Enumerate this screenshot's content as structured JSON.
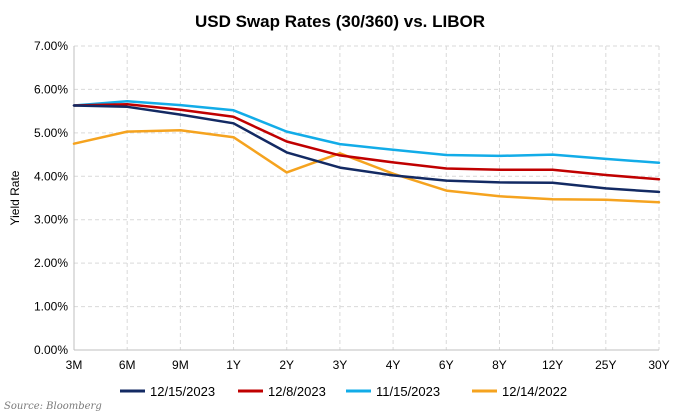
{
  "chart_data": {
    "type": "line",
    "title": "USD Swap Rates (30/360) vs. LIBOR",
    "xlabel": "",
    "ylabel": "Yield Rate",
    "categories": [
      "3M",
      "6M",
      "9M",
      "1Y",
      "2Y",
      "3Y",
      "4Y",
      "6Y",
      "8Y",
      "12Y",
      "25Y",
      "30Y"
    ],
    "ylim": [
      0,
      0.07
    ],
    "yticks": [
      "0.00%",
      "1.00%",
      "2.00%",
      "3.00%",
      "4.00%",
      "5.00%",
      "6.00%",
      "7.00%"
    ],
    "grid": true,
    "legend_position": "bottom",
    "series": [
      {
        "name": "12/15/2023",
        "color": "#132a63",
        "values": [
          0.0563,
          0.056,
          0.0542,
          0.0522,
          0.0455,
          0.042,
          0.0402,
          0.039,
          0.0386,
          0.0385,
          0.0372,
          0.0364
        ]
      },
      {
        "name": "12/8/2023",
        "color": "#c00000",
        "values": [
          0.0563,
          0.0566,
          0.0553,
          0.0537,
          0.048,
          0.0448,
          0.0432,
          0.0418,
          0.0415,
          0.0415,
          0.0403,
          0.0393
        ]
      },
      {
        "name": "11/15/2023",
        "color": "#12ace8",
        "values": [
          0.0563,
          0.0573,
          0.0564,
          0.0552,
          0.0503,
          0.0474,
          0.0461,
          0.0449,
          0.0447,
          0.045,
          0.044,
          0.0431
        ]
      },
      {
        "name": "12/14/2022",
        "color": "#f5a31f",
        "values": [
          0.0475,
          0.0503,
          0.0506,
          0.049,
          0.0409,
          0.0453,
          0.0406,
          0.0367,
          0.0354,
          0.0347,
          0.0346,
          0.034
        ]
      }
    ],
    "source_note": "Source: Bloomberg"
  }
}
